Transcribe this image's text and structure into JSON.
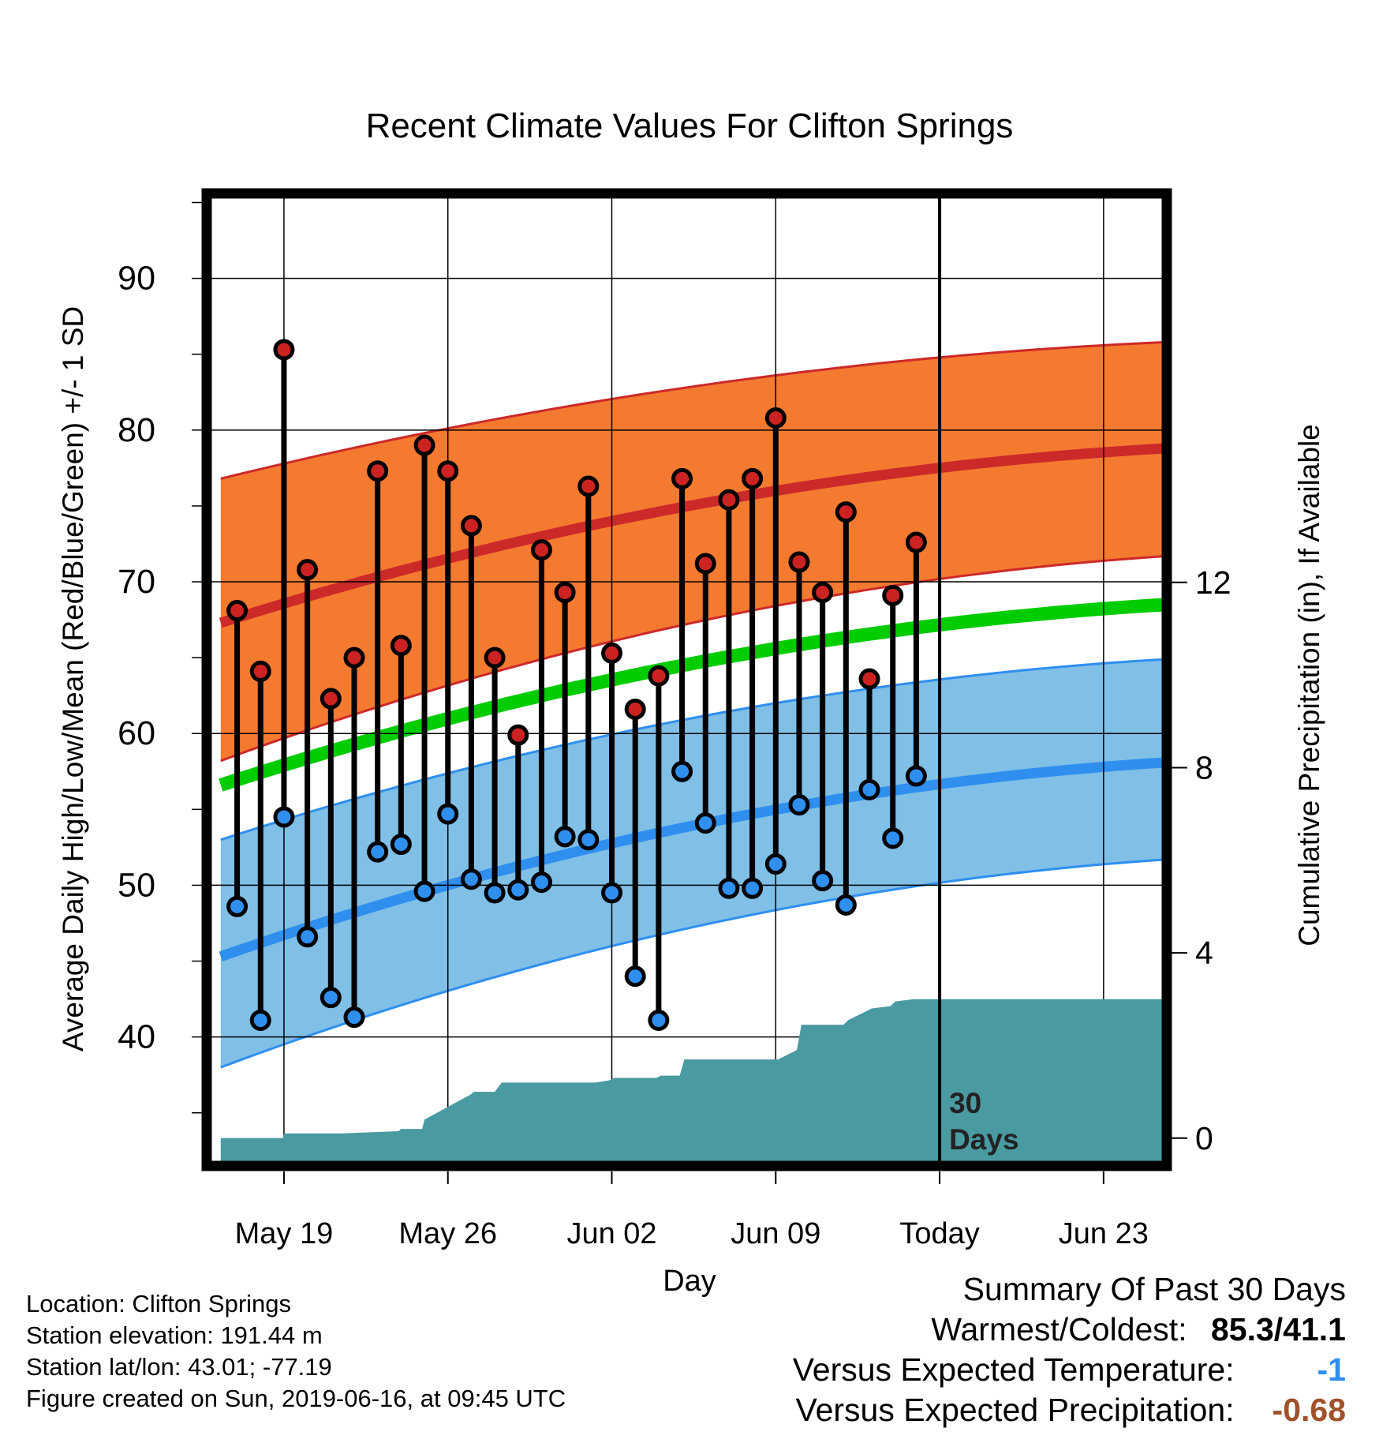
{
  "chart_data": {
    "type": "line",
    "title": "Recent Climate Values For Clifton Springs",
    "xlabel": "Day",
    "ylabel": "Average Daily High/Low/Mean (Red/Blue/Green) +/- 1 SD",
    "y2label": "Cumulative Precipitation (in), If Available",
    "x_ticks": [
      {
        "day": 0,
        "label": "May 19"
      },
      {
        "day": 7,
        "label": "May 26"
      },
      {
        "day": 14,
        "label": "Jun 02"
      },
      {
        "day": 21,
        "label": "Jun 09"
      },
      {
        "day": 28,
        "label": "Today"
      },
      {
        "day": 35,
        "label": "Jun 23"
      }
    ],
    "xlim": [
      -3.3,
      37.7
    ],
    "ylim": [
      31.5,
      95.6
    ],
    "y_ticks": [
      40,
      50,
      60,
      70,
      80,
      90
    ],
    "y2lim": [
      -0.6,
      20.4
    ],
    "y2_ticks": [
      0,
      4,
      8,
      12
    ],
    "grid": true,
    "today_day": 28,
    "today_annotation": "30 Days",
    "normal_high": {
      "x": [
        -2.7,
        37.7
      ],
      "y": [
        67.3,
        78.8
      ],
      "sd_upper": [
        76.8,
        85.8
      ],
      "sd_lower": [
        58.2,
        71.7
      ]
    },
    "normal_low": {
      "x": [
        -2.7,
        37.7
      ],
      "y": [
        45.3,
        58.1
      ],
      "sd_upper": [
        53.0,
        64.9
      ],
      "sd_lower": [
        38.0,
        51.7
      ]
    },
    "normal_mean": {
      "x": [
        -2.7,
        37.7
      ],
      "y": [
        56.6,
        68.5
      ]
    },
    "series": [
      {
        "name": "High",
        "color": "#cc2222",
        "x": [
          -2,
          -1,
          0,
          1,
          2,
          3,
          4,
          5,
          6,
          7,
          8,
          9,
          10,
          11,
          12,
          13,
          14,
          15,
          16,
          17,
          18,
          19,
          20,
          21,
          22,
          23,
          24,
          25,
          26,
          27
        ],
        "values": [
          68.1,
          64.1,
          85.3,
          70.8,
          62.3,
          65.0,
          77.3,
          65.8,
          79.0,
          77.3,
          73.7,
          65.0,
          59.9,
          72.1,
          69.3,
          76.3,
          65.3,
          61.6,
          63.8,
          76.8,
          71.2,
          75.4,
          76.8,
          80.8,
          71.3,
          69.3,
          74.6,
          63.6,
          69.1,
          72.6
        ]
      },
      {
        "name": "Low",
        "color": "#2e8fef",
        "x": [
          -2,
          -1,
          0,
          1,
          2,
          3,
          4,
          5,
          6,
          7,
          8,
          9,
          10,
          11,
          12,
          13,
          14,
          15,
          16,
          17,
          18,
          19,
          20,
          21,
          22,
          23,
          24,
          25,
          26,
          27
        ],
        "values": [
          48.6,
          41.1,
          54.5,
          46.6,
          42.6,
          41.3,
          52.2,
          52.7,
          49.6,
          54.7,
          50.4,
          49.5,
          49.7,
          50.2,
          53.2,
          53.0,
          49.5,
          44.0,
          41.1,
          57.5,
          54.1,
          49.8,
          49.8,
          51.4,
          55.3,
          50.3,
          48.7,
          56.3,
          53.1,
          57.2
        ]
      },
      {
        "name": "Cumulative Precipitation",
        "color": "#4a9aa2",
        "x": [
          -2.7,
          -0.05,
          0,
          2.3,
          2.4,
          4.9,
          5,
          5.9,
          6,
          8,
          8.1,
          9,
          9.3,
          12.9,
          13.3,
          13.9,
          14.1,
          15.9,
          16.1,
          16.9,
          17.1,
          21,
          21.1,
          21.9,
          22.1,
          23.9,
          24.1,
          24.9,
          25.1,
          25.9,
          26.1,
          26.9,
          27.1,
          37.7
        ],
        "values": [
          0,
          0,
          0.1,
          0.1,
          0.1,
          0.15,
          0.2,
          0.2,
          0.4,
          0.95,
          1.0,
          1.0,
          1.2,
          1.2,
          1.2,
          1.25,
          1.3,
          1.3,
          1.35,
          1.35,
          1.7,
          1.7,
          1.7,
          1.9,
          2.45,
          2.45,
          2.55,
          2.75,
          2.8,
          2.85,
          2.95,
          3.0,
          3.0,
          3.0
        ]
      }
    ]
  },
  "footer": {
    "location": "Location: Clifton Springs",
    "elevation": "Station elevation: 191.44 m",
    "latlon": "Station lat/lon: 43.01; -77.19",
    "created": "Figure created on Sun, 2019-06-16, at 09:45 UTC"
  },
  "summary": {
    "title": "Summary Of Past 30 Days",
    "warm_cold_label": "Warmest/Coldest:",
    "warm_cold_value": "85.3/41.1",
    "temp_label": "Versus Expected Temperature:",
    "temp_value": "-1",
    "temp_color": "#2e8fef",
    "precip_label": "Versus Expected Precipitation:",
    "precip_value": "-0.68",
    "precip_color": "#a0522d"
  },
  "colors": {
    "high_band": "#f47a30",
    "high_line": "#cc2929",
    "low_band": "#80bfe6",
    "low_line": "#2e8fef",
    "mean_line": "#00cc00",
    "precip_fill": "#4a9aa2",
    "high_marker": "#cc2222",
    "low_marker": "#2e8fef"
  }
}
